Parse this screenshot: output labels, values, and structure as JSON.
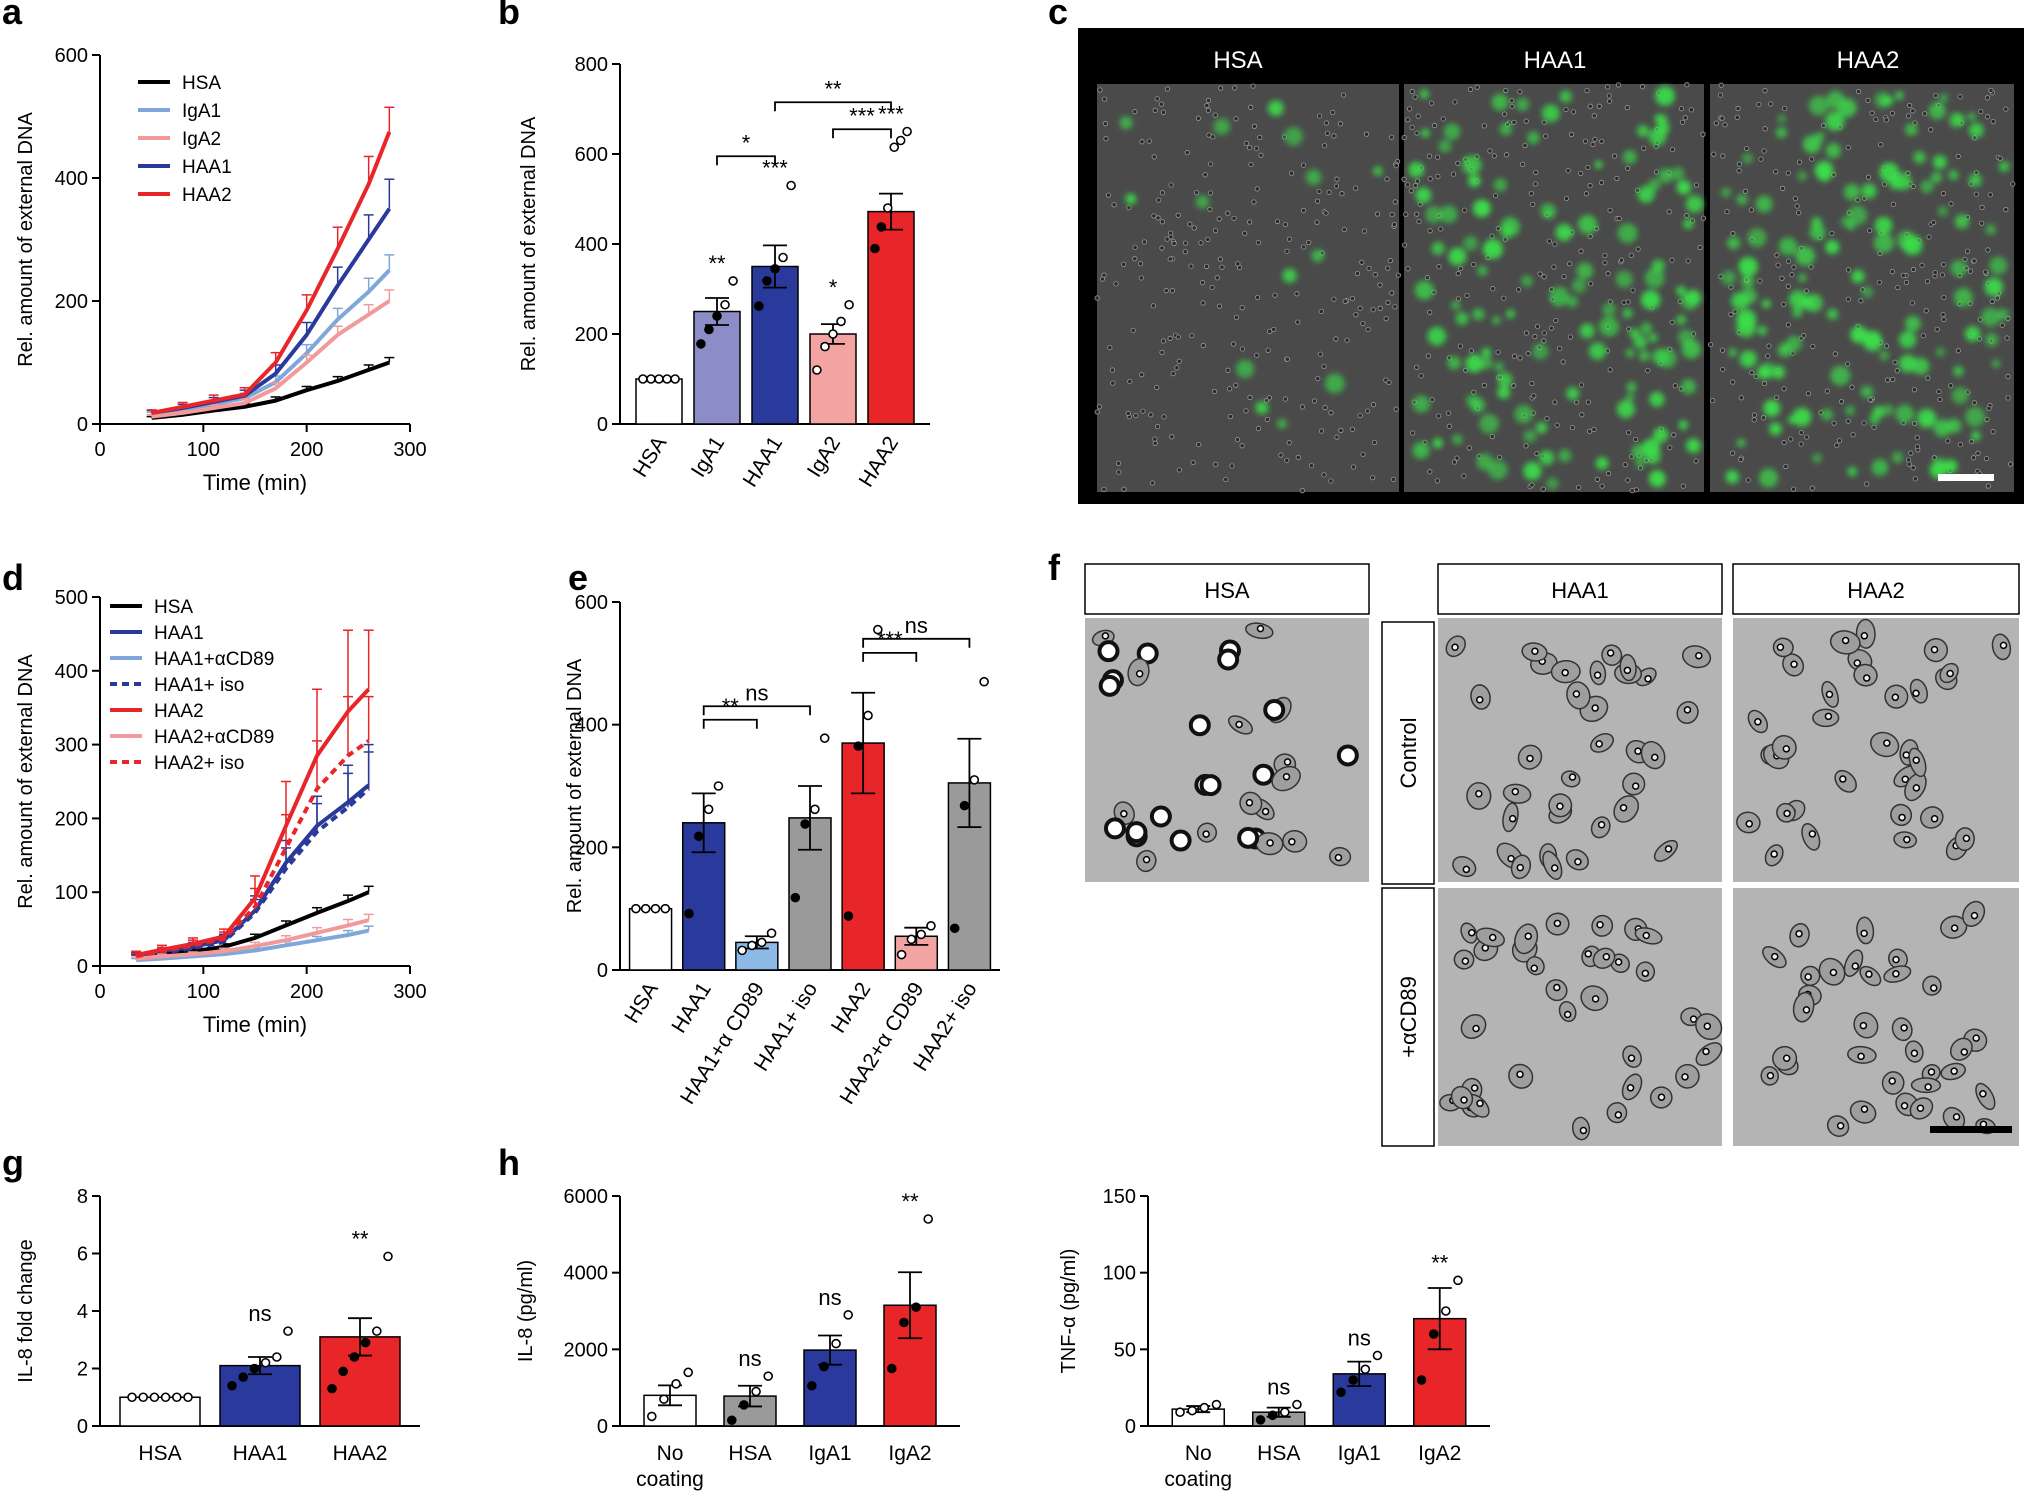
{
  "colors": {
    "hsa": "#000000",
    "iga1": "#7fa7d9",
    "iga2": "#f29a9a",
    "haa1": "#2a3a9c",
    "haa2": "#e8262a",
    "grey": "#9a9a9a",
    "iga1_bar": "#8c8cc6",
    "iga2_bar": "#f4a3a3",
    "acd89_bar": "#8cb9e6",
    "green": "#3be04a"
  },
  "panel_letters": {
    "a": "a",
    "b": "b",
    "c": "c",
    "d": "d",
    "e": "e",
    "f": "f",
    "g": "g",
    "h": "h"
  },
  "micro_c": {
    "labels": [
      "HSA",
      "HAA1",
      "HAA2"
    ]
  },
  "micro_f": {
    "cols": [
      "HSA",
      "HAA1",
      "HAA2"
    ],
    "rows": [
      "Control",
      "+αCD89"
    ]
  },
  "chart_data": [
    {
      "panel": "a",
      "type": "line",
      "xlabel": "Time (min)",
      "ylabel": "Rel. amount of external DNA",
      "xlim": [
        0,
        300
      ],
      "ylim": [
        0,
        600
      ],
      "xticks": [
        0,
        100,
        200,
        300
      ],
      "yticks": [
        0,
        200,
        400,
        600
      ],
      "legend": [
        "HSA",
        "IgA1",
        "IgA2",
        "HAA1",
        "HAA2"
      ],
      "series": [
        {
          "name": "HSA",
          "color": "#000000",
          "dash": false,
          "x": [
            50,
            80,
            110,
            140,
            170,
            200,
            230,
            260,
            280
          ],
          "y": [
            10,
            15,
            22,
            28,
            38,
            55,
            70,
            88,
            100
          ],
          "err": [
            2,
            3,
            4,
            5,
            6,
            6,
            7,
            8,
            8
          ]
        },
        {
          "name": "IgA1",
          "color": "#7fa7d9",
          "dash": false,
          "x": [
            50,
            80,
            110,
            140,
            170,
            200,
            230,
            260,
            280
          ],
          "y": [
            15,
            22,
            32,
            42,
            68,
            115,
            170,
            215,
            250
          ],
          "err": [
            4,
            5,
            6,
            8,
            10,
            14,
            18,
            22,
            25
          ]
        },
        {
          "name": "IgA2",
          "color": "#f29a9a",
          "dash": false,
          "x": [
            50,
            80,
            110,
            140,
            170,
            200,
            230,
            260,
            280
          ],
          "y": [
            12,
            18,
            26,
            34,
            58,
            100,
            145,
            178,
            200
          ],
          "err": [
            3,
            4,
            5,
            7,
            9,
            12,
            14,
            16,
            18
          ]
        },
        {
          "name": "HAA1",
          "color": "#2a3a9c",
          "dash": false,
          "x": [
            50,
            80,
            110,
            140,
            170,
            200,
            230,
            260,
            280
          ],
          "y": [
            18,
            26,
            36,
            46,
            82,
            145,
            225,
            300,
            350
          ],
          "err": [
            4,
            6,
            7,
            9,
            14,
            20,
            30,
            40,
            48
          ]
        },
        {
          "name": "HAA2",
          "color": "#e8262a",
          "dash": false,
          "x": [
            50,
            80,
            110,
            140,
            170,
            200,
            230,
            260,
            280
          ],
          "y": [
            18,
            28,
            38,
            48,
            100,
            185,
            285,
            390,
            475
          ],
          "err": [
            5,
            7,
            9,
            11,
            16,
            25,
            35,
            45,
            40
          ]
        }
      ]
    },
    {
      "panel": "b",
      "type": "bar",
      "ylabel": "Rel. amount of external DNA",
      "ylim": [
        0,
        800
      ],
      "yticks": [
        0,
        200,
        400,
        600,
        800
      ],
      "categories": [
        "HSA",
        "IgA1",
        "HAA1",
        "IgA2",
        "HAA2"
      ],
      "values": [
        100,
        250,
        350,
        200,
        472
      ],
      "sem": [
        0,
        30,
        47,
        22,
        40
      ],
      "colors": [
        "#ffffff",
        "#8c8cc6",
        "#2a3a9c",
        "#f4a3a3",
        "#e8262a"
      ],
      "points": [
        [
          100,
          100,
          100,
          100,
          100
        ],
        [
          178,
          210,
          240,
          265,
          318
        ],
        [
          262,
          318,
          345,
          370,
          530
        ],
        [
          120,
          172,
          200,
          228,
          265
        ],
        [
          390,
          438,
          480,
          615,
          630,
          650
        ]
      ],
      "stars": [
        "",
        "**",
        "***",
        "*",
        "***"
      ],
      "brackets": [
        {
          "from": 1,
          "to": 2,
          "y": 595,
          "label": "*"
        },
        {
          "from": 3,
          "to": 4,
          "y": 655,
          "label": "***"
        },
        {
          "from": 2,
          "to": 4,
          "y": 715,
          "label": "**"
        }
      ]
    },
    {
      "panel": "d",
      "type": "line",
      "xlabel": "Time (min)",
      "ylabel": "Rel. amount of external DNA",
      "xlim": [
        0,
        300
      ],
      "ylim": [
        0,
        500
      ],
      "xticks": [
        0,
        100,
        200,
        300
      ],
      "yticks": [
        0,
        100,
        200,
        300,
        400,
        500
      ],
      "legend": [
        "HSA",
        "HAA1",
        "HAA1+αCD89",
        "HAA1+ iso",
        "HAA2",
        "HAA2+αCD89",
        "HAA2+ iso"
      ],
      "series": [
        {
          "name": "HSA",
          "color": "#000000",
          "dash": false,
          "x": [
            35,
            60,
            90,
            120,
            150,
            180,
            210,
            240,
            260
          ],
          "y": [
            12,
            16,
            20,
            26,
            38,
            55,
            72,
            88,
            100
          ],
          "err": [
            3,
            3,
            4,
            4,
            5,
            6,
            7,
            8,
            8
          ]
        },
        {
          "name": "HAA1",
          "color": "#2a3a9c",
          "dash": false,
          "x": [
            35,
            60,
            90,
            120,
            150,
            180,
            210,
            240,
            260
          ],
          "y": [
            14,
            20,
            26,
            35,
            75,
            140,
            190,
            222,
            245
          ],
          "err": [
            4,
            5,
            6,
            8,
            20,
            30,
            40,
            50,
            55
          ]
        },
        {
          "name": "HAA1+αCD89",
          "color": "#7fa7d9",
          "dash": false,
          "x": [
            35,
            60,
            90,
            120,
            150,
            180,
            210,
            240,
            260
          ],
          "y": [
            8,
            10,
            13,
            16,
            21,
            28,
            35,
            42,
            48
          ],
          "err": [
            2,
            2,
            3,
            3,
            4,
            5,
            5,
            6,
            6
          ]
        },
        {
          "name": "HAA1+ iso",
          "color": "#2a3a9c",
          "dash": true,
          "x": [
            35,
            60,
            90,
            120,
            150,
            180,
            210,
            240,
            260
          ],
          "y": [
            12,
            18,
            24,
            33,
            72,
            132,
            182,
            215,
            240
          ],
          "err": [
            4,
            5,
            6,
            8,
            18,
            28,
            38,
            46,
            50
          ]
        },
        {
          "name": "HAA2",
          "color": "#e8262a",
          "dash": false,
          "x": [
            35,
            60,
            90,
            120,
            150,
            180,
            210,
            240,
            260
          ],
          "y": [
            15,
            22,
            30,
            40,
            92,
            190,
            285,
            345,
            375
          ],
          "err": [
            5,
            6,
            8,
            10,
            30,
            60,
            90,
            110,
            80
          ]
        },
        {
          "name": "HAA2+αCD89",
          "color": "#f29a9a",
          "dash": false,
          "x": [
            35,
            60,
            90,
            120,
            150,
            180,
            210,
            240,
            260
          ],
          "y": [
            10,
            13,
            16,
            20,
            27,
            35,
            45,
            55,
            62
          ],
          "err": [
            2,
            3,
            3,
            4,
            5,
            6,
            7,
            8,
            8
          ]
        },
        {
          "name": "HAA2+ iso",
          "color": "#e8262a",
          "dash": true,
          "x": [
            35,
            60,
            90,
            120,
            150,
            180,
            210,
            240,
            260
          ],
          "y": [
            13,
            20,
            28,
            37,
            80,
            160,
            240,
            285,
            305
          ],
          "err": [
            4,
            5,
            7,
            9,
            25,
            45,
            65,
            80,
            60
          ]
        }
      ]
    },
    {
      "panel": "e",
      "type": "bar",
      "ylabel": "Rel. amount of external DNA",
      "ylim": [
        0,
        600
      ],
      "yticks": [
        0,
        200,
        400,
        600
      ],
      "categories": [
        "HSA",
        "HAA1",
        "HAA1+α CD89",
        "HAA1+ iso",
        "HAA2",
        "HAA2+α CD89",
        "HAA2+ iso"
      ],
      "values": [
        100,
        240,
        45,
        248,
        370,
        55,
        305
      ],
      "sem": [
        0,
        48,
        10,
        52,
        82,
        14,
        72
      ],
      "colors": [
        "#ffffff",
        "#2a3a9c",
        "#8cb9e6",
        "#9a9a9a",
        "#e8262a",
        "#f4a3a3",
        "#9a9a9a"
      ],
      "points": [
        [
          100,
          100,
          100,
          100
        ],
        [
          92,
          218,
          262,
          300
        ],
        [
          32,
          40,
          45,
          60
        ],
        [
          118,
          238,
          262,
          378
        ],
        [
          88,
          365,
          415,
          555
        ],
        [
          25,
          50,
          58,
          72
        ],
        [
          68,
          268,
          310,
          470
        ]
      ],
      "stars": [
        "",
        "",
        "",
        "",
        "",
        "",
        ""
      ],
      "brackets": [
        {
          "from": 1,
          "to": 2,
          "y": 408,
          "label": "**"
        },
        {
          "from": 1,
          "to": 3,
          "y": 430,
          "label": "ns"
        },
        {
          "from": 4,
          "to": 5,
          "y": 517,
          "label": "***"
        },
        {
          "from": 4,
          "to": 6,
          "y": 540,
          "label": "ns"
        }
      ]
    },
    {
      "panel": "g",
      "type": "bar",
      "ylabel": "IL-8 fold change",
      "ylim": [
        0,
        8
      ],
      "yticks": [
        0,
        2,
        4,
        6,
        8
      ],
      "categories": [
        "HSA",
        "HAA1",
        "HAA2"
      ],
      "values": [
        1,
        2.1,
        3.1
      ],
      "sem": [
        0,
        0.3,
        0.65
      ],
      "colors": [
        "#ffffff",
        "#2a3a9c",
        "#e8262a"
      ],
      "points": [
        [
          1,
          1,
          1,
          1,
          1,
          1
        ],
        [
          1.4,
          1.7,
          2.0,
          2.2,
          2.4,
          3.3
        ],
        [
          1.3,
          1.9,
          2.4,
          2.9,
          3.3,
          5.9
        ]
      ],
      "stars": [
        "",
        "ns",
        "**"
      ],
      "brackets": []
    },
    {
      "panel": "h1",
      "type": "bar",
      "ylabel": "IL-8 (pg/ml)",
      "ylim": [
        0,
        6000
      ],
      "yticks": [
        0,
        2000,
        4000,
        6000
      ],
      "categories": [
        "No\ncoating",
        "HSA",
        "IgA1",
        "IgA2"
      ],
      "values": [
        800,
        780,
        1980,
        3150
      ],
      "sem": [
        260,
        270,
        380,
        860
      ],
      "colors": [
        "#ffffff",
        "#9a9a9a",
        "#2a3a9c",
        "#e8262a"
      ],
      "points": [
        [
          250,
          700,
          1100,
          1400
        ],
        [
          150,
          550,
          900,
          1300
        ],
        [
          1050,
          1550,
          2150,
          2900
        ],
        [
          1500,
          2700,
          3100,
          5400
        ]
      ],
      "stars": [
        "",
        "ns",
        "ns",
        "**"
      ],
      "brackets": []
    },
    {
      "panel": "h2",
      "type": "bar",
      "ylabel": "TNF-α (pg/ml)",
      "ylim": [
        0,
        150
      ],
      "yticks": [
        0,
        50,
        100,
        150
      ],
      "categories": [
        "No\ncoating",
        "HSA",
        "IgA1",
        "IgA2"
      ],
      "values": [
        11,
        9,
        34,
        70
      ],
      "sem": [
        2,
        3,
        8,
        20
      ],
      "colors": [
        "#ffffff",
        "#9a9a9a",
        "#2a3a9c",
        "#e8262a"
      ],
      "points": [
        [
          9,
          10,
          12,
          14
        ],
        [
          4,
          7,
          9,
          14
        ],
        [
          22,
          30,
          37,
          46
        ],
        [
          30,
          60,
          75,
          95
        ]
      ],
      "stars": [
        "",
        "ns",
        "ns",
        "**"
      ],
      "brackets": []
    }
  ]
}
